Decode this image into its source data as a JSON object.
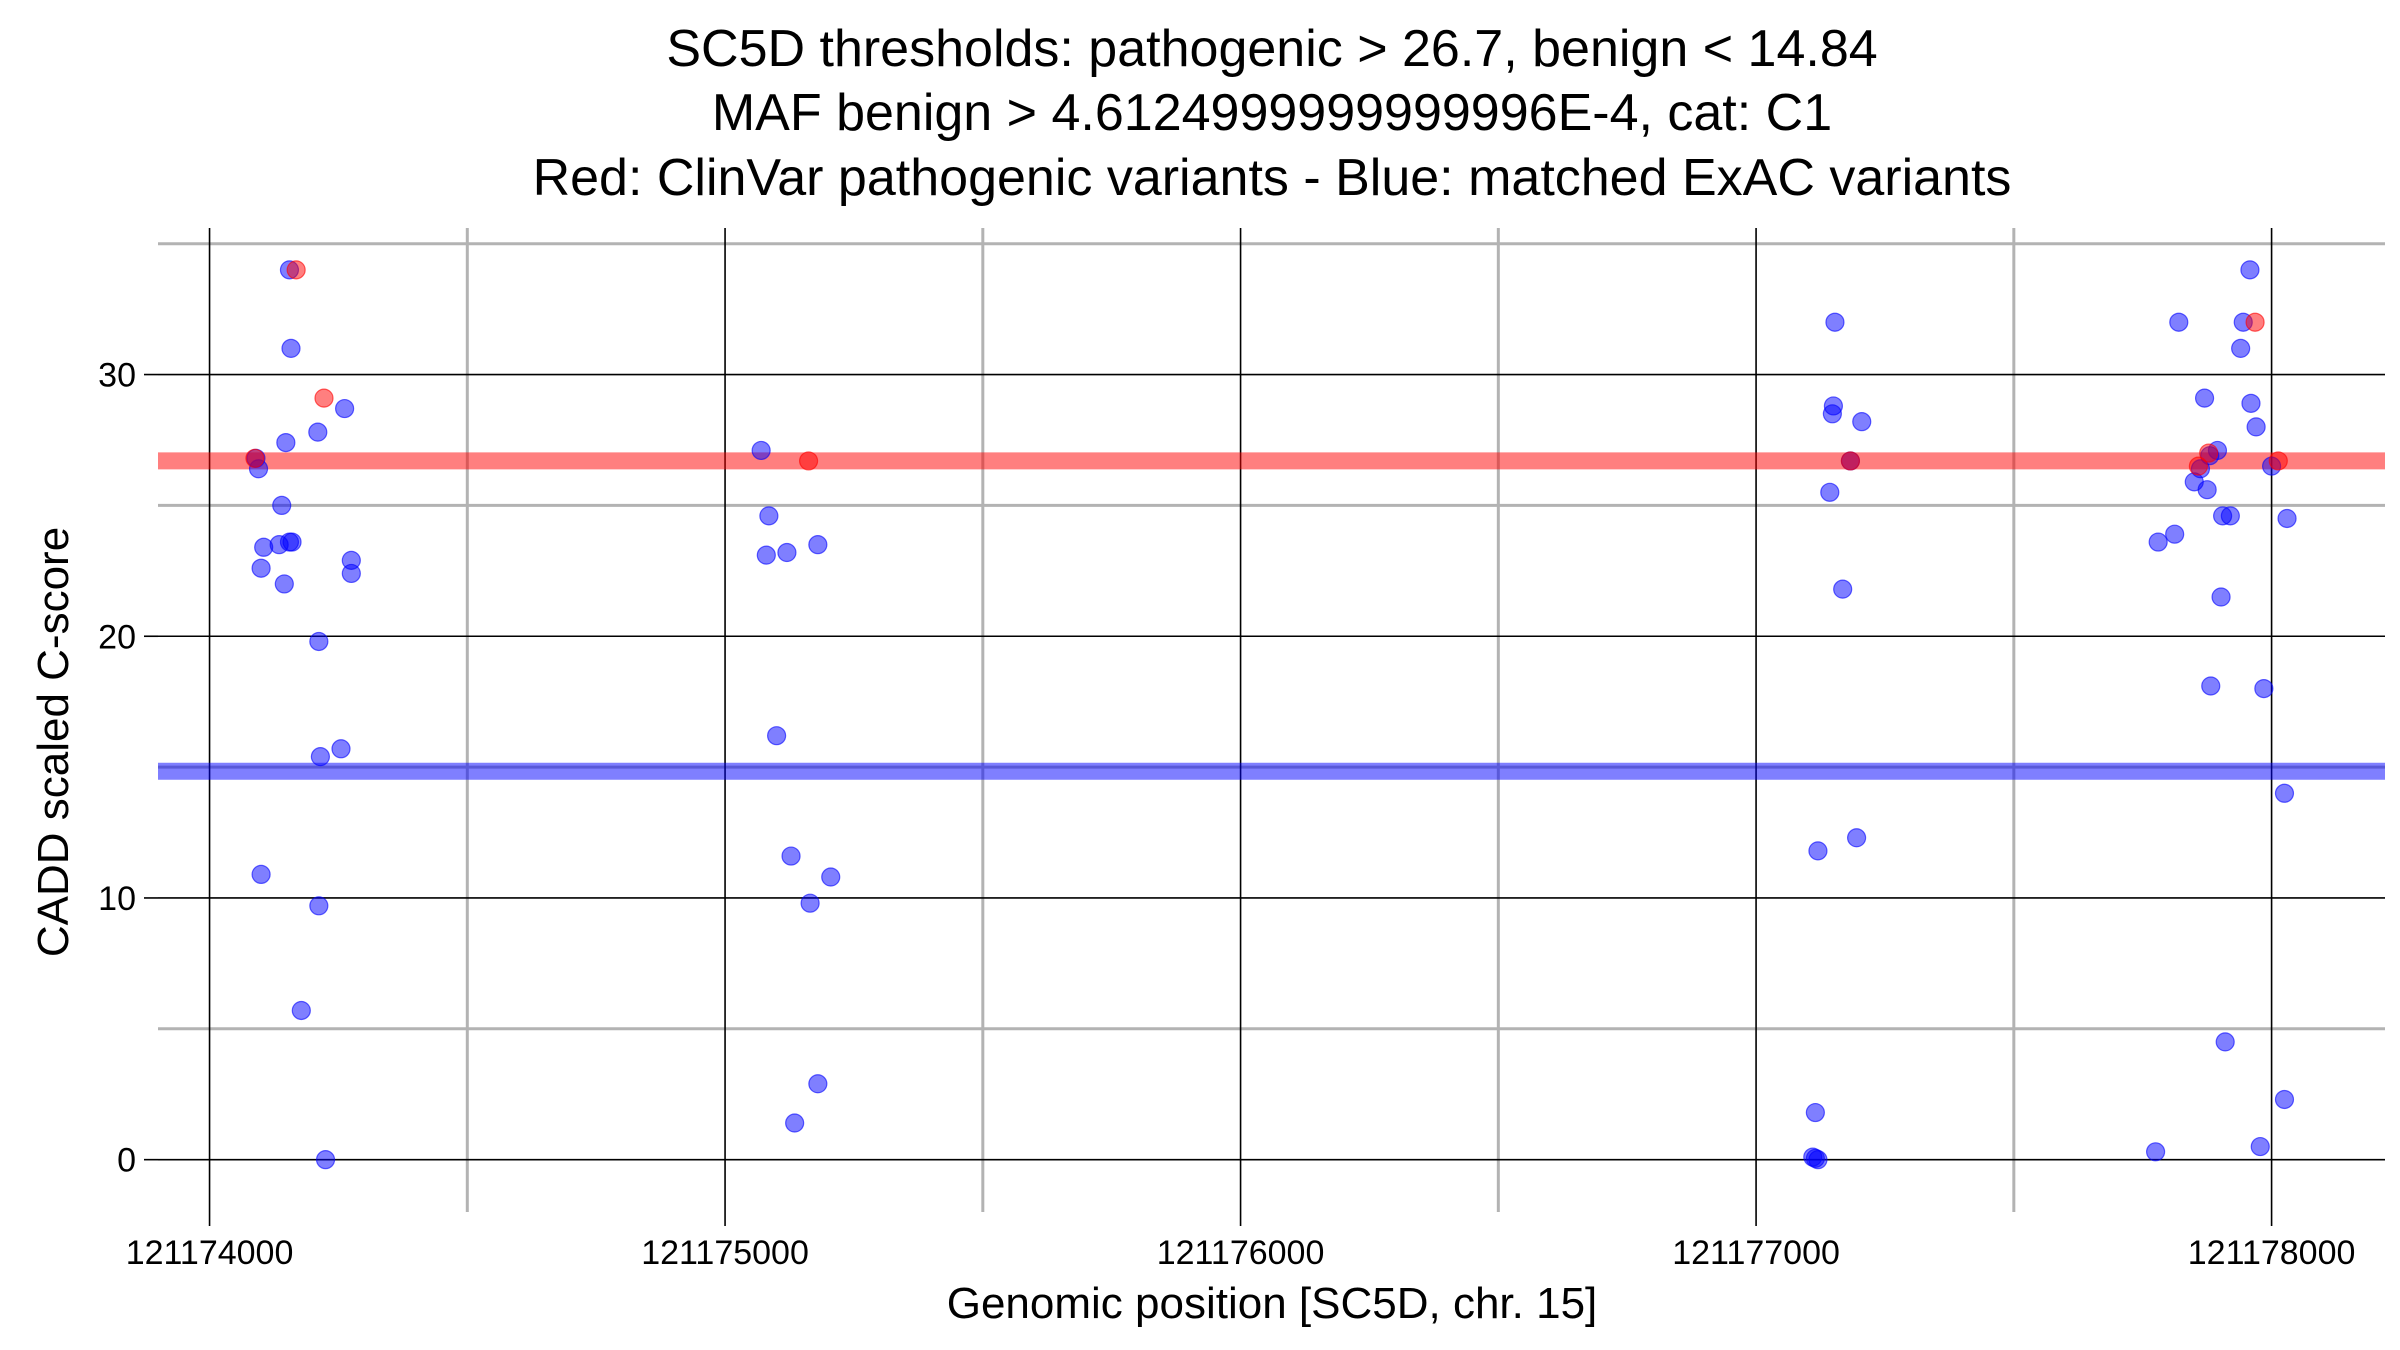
{
  "chart_data": {
    "type": "scatter",
    "title_lines": [
      "SC5D thresholds: pathogenic > 26.7, benign < 14.84",
      "MAF benign > 4.6124999999999996E-4, cat: C1",
      "Red: ClinVar pathogenic variants - Blue: matched ExAC variants"
    ],
    "xlabel": "Genomic position [SC5D, chr. 15]",
    "ylabel": "CADD scaled C-score",
    "xlim": [
      121173900,
      121178220
    ],
    "ylim": [
      -2,
      35.6
    ],
    "x_ticks": [
      121174000,
      121175000,
      121176000,
      121177000,
      121178000
    ],
    "x_tick_labels": [
      "121174000",
      "121175000",
      "121176000",
      "121177000",
      "121178000"
    ],
    "y_ticks": [
      0,
      10,
      20,
      30
    ],
    "y_tick_labels": [
      "0",
      "10",
      "20",
      "30"
    ],
    "x_minor_gridlines": [
      121174500,
      121175500,
      121176500,
      121177500
    ],
    "y_minor_gridlines": [
      5,
      15,
      25,
      35
    ],
    "grid": true,
    "colors": {
      "pathogenic": "#ff0000",
      "benign": "#0000ff",
      "major_grid": "#000000",
      "minor_grid": "#b3b3b3"
    },
    "threshold_lines": [
      {
        "kind": "pathogenic",
        "y": 26.7,
        "color": "#ff0000"
      },
      {
        "kind": "benign",
        "y": 14.84,
        "color": "#0000ff"
      }
    ],
    "series": [
      {
        "kind": "pathogenic",
        "color": "#ff0000",
        "points": [
          [
            121174168,
            34.0
          ],
          [
            121174222,
            29.1
          ],
          [
            121174088,
            26.8
          ],
          [
            121175162,
            26.7
          ],
          [
            121177183,
            26.7
          ],
          [
            121177858,
            26.5
          ],
          [
            121177878,
            27.0
          ],
          [
            121177968,
            32.0
          ],
          [
            121178013,
            26.7
          ]
        ]
      },
      {
        "kind": "benign",
        "color": "#0000ff",
        "points": [
          [
            121174155,
            34.0
          ],
          [
            121174158,
            31.0
          ],
          [
            121174262,
            28.7
          ],
          [
            121174210,
            27.8
          ],
          [
            121174148,
            27.4
          ],
          [
            121174090,
            26.8
          ],
          [
            121174095,
            26.4
          ],
          [
            121174140,
            25.0
          ],
          [
            121174105,
            23.4
          ],
          [
            121174135,
            23.5
          ],
          [
            121174155,
            23.6
          ],
          [
            121174160,
            23.6
          ],
          [
            121174275,
            22.9
          ],
          [
            121174100,
            22.6
          ],
          [
            121174275,
            22.4
          ],
          [
            121174145,
            22.0
          ],
          [
            121174212,
            19.8
          ],
          [
            121174215,
            15.4
          ],
          [
            121174255,
            15.7
          ],
          [
            121174100,
            10.9
          ],
          [
            121174212,
            9.7
          ],
          [
            121174178,
            5.7
          ],
          [
            121174225,
            0.0
          ],
          [
            121175070,
            27.1
          ],
          [
            121175085,
            24.6
          ],
          [
            121175080,
            23.1
          ],
          [
            121175120,
            23.2
          ],
          [
            121175180,
            23.5
          ],
          [
            121175100,
            16.2
          ],
          [
            121175128,
            11.6
          ],
          [
            121175205,
            10.8
          ],
          [
            121175165,
            9.8
          ],
          [
            121175180,
            2.9
          ],
          [
            121175135,
            1.4
          ],
          [
            121177153,
            32.0
          ],
          [
            121177150,
            28.8
          ],
          [
            121177148,
            28.5
          ],
          [
            121177205,
            28.2
          ],
          [
            121177183,
            26.7
          ],
          [
            121177143,
            25.5
          ],
          [
            121177168,
            21.8
          ],
          [
            121177120,
            11.8
          ],
          [
            121177195,
            12.3
          ],
          [
            121177115,
            1.8
          ],
          [
            121177110,
            0.1
          ],
          [
            121177115,
            0.05
          ],
          [
            121177120,
            0.0
          ],
          [
            121177958,
            34.0
          ],
          [
            121177820,
            32.0
          ],
          [
            121177945,
            32.0
          ],
          [
            121177940,
            31.0
          ],
          [
            121177870,
            29.1
          ],
          [
            121177960,
            28.9
          ],
          [
            121177970,
            28.0
          ],
          [
            121177895,
            27.1
          ],
          [
            121177880,
            26.9
          ],
          [
            121177862,
            26.4
          ],
          [
            121177850,
            25.9
          ],
          [
            121177875,
            25.6
          ],
          [
            121178000,
            26.5
          ],
          [
            121177905,
            24.6
          ],
          [
            121177920,
            24.6
          ],
          [
            121178030,
            24.5
          ],
          [
            121177812,
            23.9
          ],
          [
            121177780,
            23.6
          ],
          [
            121177902,
            21.5
          ],
          [
            121177882,
            18.1
          ],
          [
            121177985,
            18.0
          ],
          [
            121178025,
            14.0
          ],
          [
            121177910,
            4.5
          ],
          [
            121178025,
            2.3
          ],
          [
            121177978,
            0.5
          ],
          [
            121177775,
            0.3
          ]
        ]
      }
    ]
  }
}
